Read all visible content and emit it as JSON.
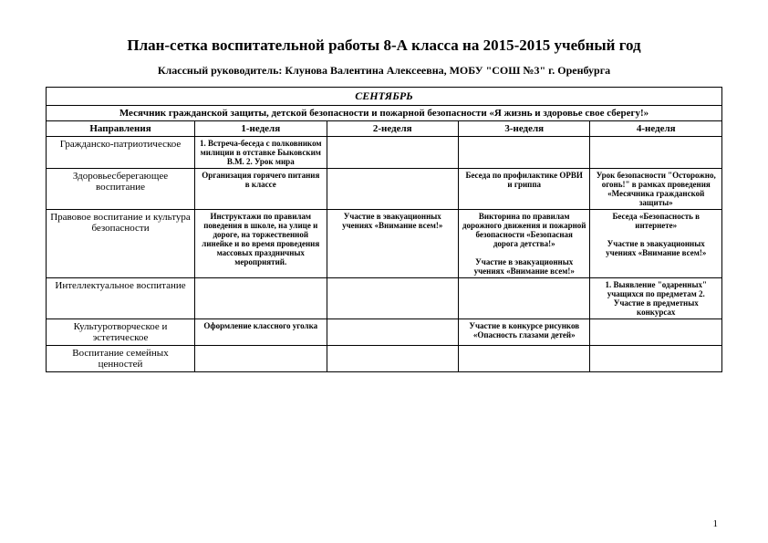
{
  "title": "План-сетка воспитательной работы 8-А класса на 2015-2015 учебный год",
  "subtitle": "Классный руководитель: Клунова Валентина Алексеевна, МОБУ \"СОШ №3\" г. Оренбурга",
  "month": "СЕНТЯБРЬ",
  "theme": "Месячник гражданской защиты, детской безопасности и пожарной безопасности «Я жизнь и здоровье свое сберегу!»",
  "headers": {
    "directions": "Направления",
    "week1": "1-неделя",
    "week2": "2-неделя",
    "week3": "3-неделя",
    "week4": "4-неделя"
  },
  "rows": [
    {
      "direction": "Гражданско-патриотическое",
      "w1": "1. Встреча-беседа с полковником милиции в отставке Быковским В.М. 2. Урок мира",
      "w2": "",
      "w3": "",
      "w4": ""
    },
    {
      "direction": "Здоровьесберегающее воспитание",
      "w1": "Организация горячего питания в классе",
      "w2": "",
      "w3": "Беседа по профилактике ОРВИ и гриппа",
      "w4": "Урок безопасности \"Осторожно, огонь!\" в рамках проведения «Месячника гражданской защиты»"
    },
    {
      "direction": "Правовое воспитание и культура безопасности",
      "w1": "Инструктажи по правилам поведения в школе, на улице и дороге, на торжественной линейке и во время проведения массовых праздничных мероприятий.",
      "w2": "Участие в эвакуационных учениях «Внимание всем!»",
      "w3": "Викторина по правилам дорожного движения и пожарной безопасности «Безопасная дорога детства!»\n\nУчастие в эвакуационных учениях «Внимание всем!»",
      "w4": "Беседа «Безопасность в интернете»\n\nУчастие в эвакуационных учениях «Внимание всем!»"
    },
    {
      "direction": "Интеллектуальное воспитание",
      "w1": "",
      "w2": "",
      "w3": "",
      "w4": "1. Выявление \"одаренных\" учащихся по предметам 2. Участие в предметных конкурсах"
    },
    {
      "direction": "Культуротворческое и эстетическое",
      "w1": "Оформление классного уголка",
      "w2": "",
      "w3": "Участие в конкурсе рисунков «Опасность глазами детей»",
      "w4": ""
    },
    {
      "direction": "Воспитание семейных ценностей",
      "w1": "",
      "w2": "",
      "w3": "",
      "w4": ""
    }
  ],
  "page_number": "1"
}
